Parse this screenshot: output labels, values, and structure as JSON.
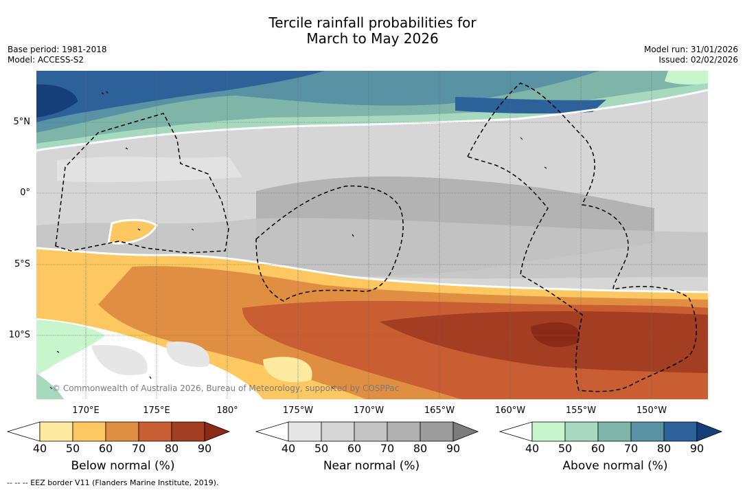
{
  "title_line1": "Tercile rainfall probabilities for",
  "title_line2": "March to May 2026",
  "base_period": "Base period: 1981-2018",
  "model": "Model: ACCESS-S2",
  "model_run": "Model run: 31/01/2026",
  "issued": "Issued: 02/02/2026",
  "y_axis_labels": [
    "5°N",
    "0°",
    "5°S",
    "10°S"
  ],
  "x_axis_labels": [
    "170°E",
    "175°E",
    "180°",
    "175°W",
    "170°W",
    "165°W",
    "160°W",
    "155°W",
    "150°W"
  ],
  "copyright": "© Commonwealth of Australia 2026, Bureau of Meteorology, supported by COSPPac",
  "colorbars": [
    {
      "title": "Below normal (%)",
      "ticks": [
        "40",
        "50",
        "60",
        "70",
        "80",
        "90"
      ],
      "colors": [
        "#ffffff",
        "#feeba0",
        "#fdc762",
        "#e08e42",
        "#c85e31",
        "#a43e22",
        "#8a2a17"
      ]
    },
    {
      "title": "Near normal (%)",
      "ticks": [
        "40",
        "50",
        "60",
        "70",
        "80",
        "90"
      ],
      "colors": [
        "#ffffff",
        "#e6e6e6",
        "#d6d6d6",
        "#c4c4c4",
        "#b1b1b1",
        "#9d9d9d",
        "#7c7c7c"
      ]
    },
    {
      "title": "Above normal (%)",
      "ticks": [
        "40",
        "50",
        "60",
        "70",
        "80",
        "90"
      ],
      "colors": [
        "#ffffff",
        "#c8f6cc",
        "#a6d9be",
        "#7eb5a8",
        "#5892a4",
        "#2d6199",
        "#143f78"
      ]
    }
  ],
  "footnote": "--  --  -- EEZ border V11 (Flanders Marine Institute, 2019)."
}
